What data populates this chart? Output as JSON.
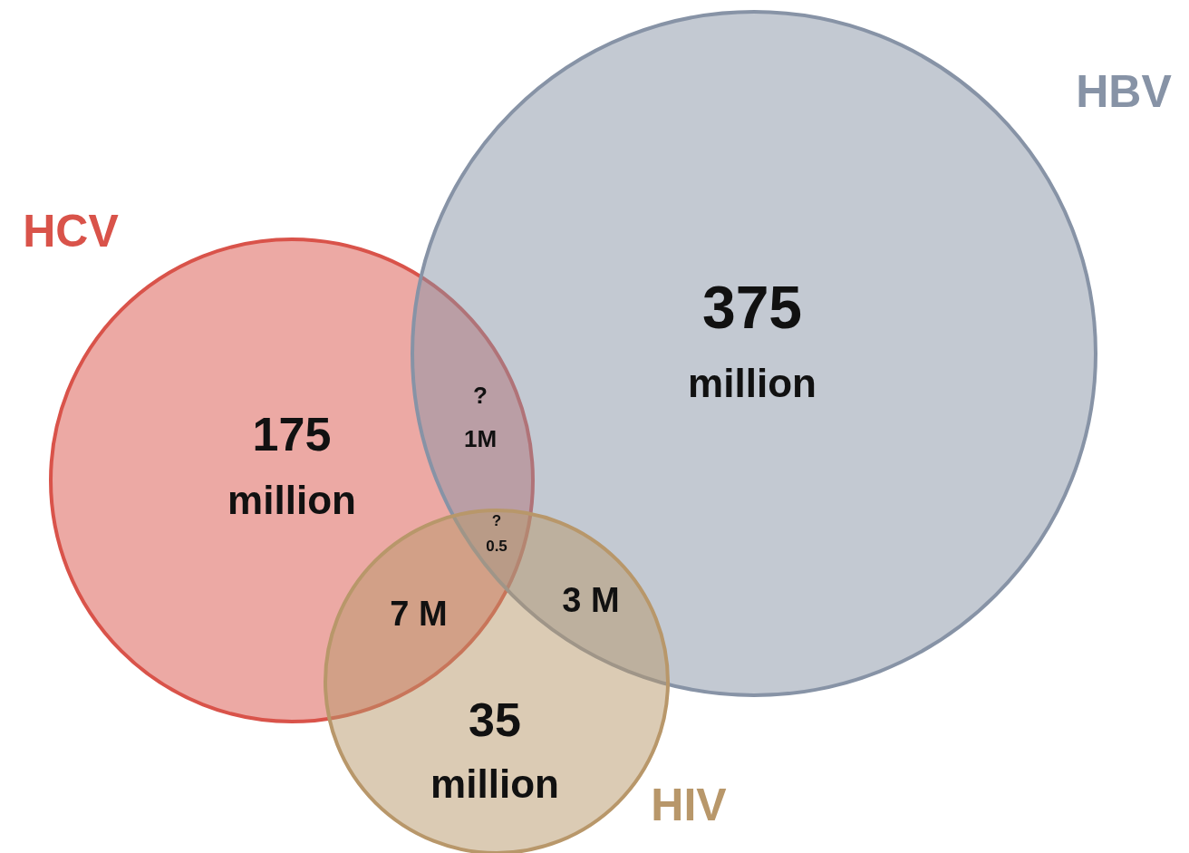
{
  "chart_data": {
    "type": "other",
    "categories": [
      "HCV",
      "HBV",
      "HIV"
    ],
    "values": [
      175,
      375,
      35
    ],
    "data_labels": true,
    "colors": [
      "#d9534a",
      "#8793a6",
      "#b8976a"
    ],
    "annotations": [
      "?\n1M",
      "?\n0.5",
      "7 M",
      "3 M",
      "million",
      "million",
      "million"
    ]
  }
}
